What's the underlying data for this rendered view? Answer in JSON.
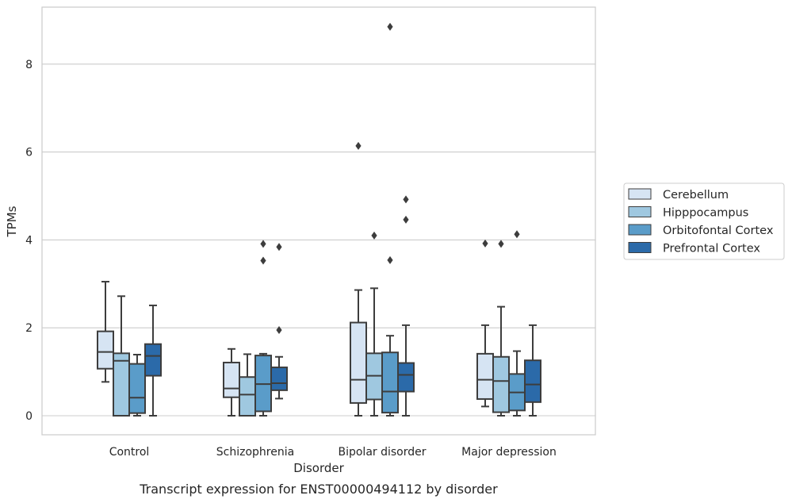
{
  "chart_data": {
    "type": "box",
    "xlabel": "Disorder",
    "ylabel": "TPMs",
    "caption": "Transcript expression for ENST00000494112 by disorder",
    "ylim": [
      -0.42,
      9.3
    ],
    "yticks": [
      0,
      2,
      4,
      6,
      8
    ],
    "grid": "horizontal",
    "legend_position": "outside-right",
    "categories": [
      "Control",
      "Schizophrenia",
      "Bipolar disorder",
      "Major depression"
    ],
    "series": [
      {
        "name": "Cerebellum",
        "color": "#d6e4f3",
        "boxes": [
          {
            "whislo": 0.77,
            "q1": 1.07,
            "med": 1.45,
            "q3": 1.92,
            "whishi": 3.05,
            "fliers": []
          },
          {
            "whislo": 0.0,
            "q1": 0.42,
            "med": 0.62,
            "q3": 1.21,
            "whishi": 1.52,
            "fliers": []
          },
          {
            "whislo": 0.0,
            "q1": 0.29,
            "med": 0.82,
            "q3": 2.12,
            "whishi": 2.86,
            "fliers": [
              6.14
            ]
          },
          {
            "whislo": 0.21,
            "q1": 0.38,
            "med": 0.82,
            "q3": 1.41,
            "whishi": 2.06,
            "fliers": [
              3.92
            ]
          }
        ]
      },
      {
        "name": "Hipppocampus",
        "color": "#9fc8e0",
        "boxes": [
          {
            "whislo": 0.0,
            "q1": 0.0,
            "med": 1.25,
            "q3": 1.42,
            "whishi": 2.72,
            "fliers": []
          },
          {
            "whislo": 0.0,
            "q1": 0.0,
            "med": 0.48,
            "q3": 0.88,
            "whishi": 1.4,
            "fliers": []
          },
          {
            "whislo": 0.0,
            "q1": 0.37,
            "med": 0.91,
            "q3": 1.42,
            "whishi": 2.9,
            "fliers": [
              4.1
            ]
          },
          {
            "whislo": 0.0,
            "q1": 0.08,
            "med": 0.79,
            "q3": 1.34,
            "whishi": 2.48,
            "fliers": [
              3.91
            ]
          }
        ]
      },
      {
        "name": "Orbitofontal Cortex",
        "color": "#5a9cc9",
        "boxes": [
          {
            "whislo": 0.0,
            "q1": 0.06,
            "med": 0.41,
            "q3": 1.18,
            "whishi": 1.39,
            "fliers": []
          },
          {
            "whislo": 0.0,
            "q1": 0.1,
            "med": 0.72,
            "q3": 1.37,
            "whishi": 1.41,
            "fliers": [
              3.53,
              3.91
            ]
          },
          {
            "whislo": 0.0,
            "q1": 0.07,
            "med": 0.55,
            "q3": 1.44,
            "whishi": 1.82,
            "fliers": [
              3.54,
              8.85
            ]
          },
          {
            "whislo": 0.0,
            "q1": 0.12,
            "med": 0.53,
            "q3": 0.95,
            "whishi": 1.47,
            "fliers": [
              4.13
            ]
          }
        ]
      },
      {
        "name": "Prefrontal Cortex",
        "color": "#2b6aa9",
        "boxes": [
          {
            "whislo": 0.0,
            "q1": 0.91,
            "med": 1.36,
            "q3": 1.63,
            "whishi": 2.51,
            "fliers": []
          },
          {
            "whislo": 0.39,
            "q1": 0.58,
            "med": 0.74,
            "q3": 1.1,
            "whishi": 1.34,
            "fliers": [
              1.95,
              3.84
            ]
          },
          {
            "whislo": 0.0,
            "q1": 0.55,
            "med": 0.93,
            "q3": 1.2,
            "whishi": 2.06,
            "fliers": [
              4.46,
              4.92
            ]
          },
          {
            "whislo": 0.0,
            "q1": 0.31,
            "med": 0.71,
            "q3": 1.26,
            "whishi": 2.06,
            "fliers": []
          }
        ]
      }
    ]
  }
}
